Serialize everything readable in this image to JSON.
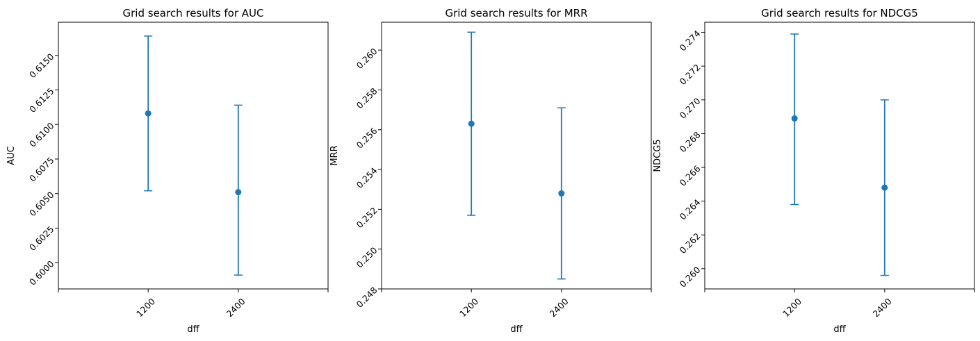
{
  "figure": {
    "series_color": "#1f77b4",
    "grid": false
  },
  "chart_data": [
    {
      "type": "errorbar",
      "title": "Grid search results for AUC",
      "xlabel": "dff",
      "ylabel": "AUC",
      "categories": [
        "1200",
        "2400"
      ],
      "values": [
        0.6108,
        0.6051
      ],
      "error_low": [
        0.6052,
        0.5991
      ],
      "error_high": [
        0.6164,
        0.6114
      ],
      "ylim": [
        0.5981,
        0.6174
      ],
      "yticks": [
        0.6,
        0.6025,
        0.605,
        0.6075,
        0.61,
        0.6125,
        0.615
      ],
      "ytick_labels": [
        "0.6000",
        "0.6025",
        "0.6050",
        "0.6075",
        "0.6100",
        "0.6125",
        "0.6150"
      ]
    },
    {
      "type": "errorbar",
      "title": "Grid search results for MRR",
      "xlabel": "dff",
      "ylabel": "MRR",
      "categories": [
        "1200",
        "2400"
      ],
      "values": [
        0.2563,
        0.2528
      ],
      "error_low": [
        0.2517,
        0.2485
      ],
      "error_high": [
        0.2609,
        0.2571
      ],
      "ylim": [
        0.248,
        0.2614
      ],
      "yticks": [
        0.248,
        0.25,
        0.252,
        0.254,
        0.256,
        0.258,
        0.26
      ],
      "ytick_labels": [
        "0.248",
        "0.250",
        "0.252",
        "0.254",
        "0.256",
        "0.258",
        "0.260"
      ]
    },
    {
      "type": "errorbar",
      "title": "Grid search results for NDCG5",
      "xlabel": "dff",
      "ylabel": "NDCG5",
      "categories": [
        "1200",
        "2400"
      ],
      "values": [
        0.2689,
        0.2648
      ],
      "error_low": [
        0.2638,
        0.2596
      ],
      "error_high": [
        0.2739,
        0.27
      ],
      "ylim": [
        0.2588,
        0.2746
      ],
      "yticks": [
        0.26,
        0.262,
        0.264,
        0.266,
        0.268,
        0.27,
        0.272,
        0.274
      ],
      "ytick_labels": [
        "0.260",
        "0.262",
        "0.264",
        "0.266",
        "0.268",
        "0.270",
        "0.272",
        "0.274"
      ]
    }
  ]
}
